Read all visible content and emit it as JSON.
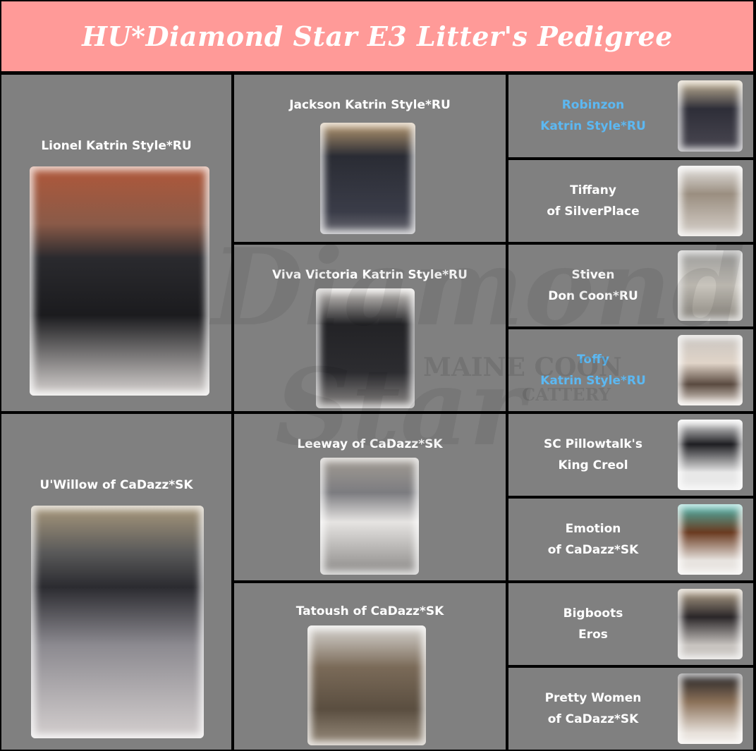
{
  "title": "HU*Diamond Star E3 Litter's Pedigree",
  "watermark": {
    "line1": "Diamond",
    "line2": "Star",
    "line3": "MAINE COON",
    "line4": "CATTERY"
  },
  "colors": {
    "header": "#ff9a98",
    "cell": "#808080",
    "text": "#ffffff",
    "highlight": "#5cb8f2"
  },
  "parents": [
    {
      "name": "Lionel Katrin Style*RU"
    },
    {
      "name": "U'Willow of CaDazz*SK"
    }
  ],
  "grandparents": [
    {
      "name": "Jackson Katrin Style*RU"
    },
    {
      "name": "Viva Victoria Katrin Style*RU"
    },
    {
      "name": "Leeway of CaDazz*SK"
    },
    {
      "name": "Tatoush of CaDazz*SK"
    }
  ],
  "great_grandparents": [
    {
      "line1": "Robinzon",
      "line2": "Katrin Style*RU",
      "highlight": true
    },
    {
      "line1": "Tiffany",
      "line2": "of SilverPlace",
      "highlight": false
    },
    {
      "line1": "Stiven",
      "line2": "Don Coon*RU",
      "highlight": false
    },
    {
      "line1": "Toffy",
      "line2": "Katrin Style*RU",
      "highlight": true
    },
    {
      "line1": "SC Pillowtalk's",
      "line2": "King Creol",
      "highlight": false
    },
    {
      "line1": "Emotion",
      "line2": "of CaDazz*SK",
      "highlight": false
    },
    {
      "line1": "Bigboots",
      "line2": "Eros",
      "highlight": false
    },
    {
      "line1": "Pretty Women",
      "line2": "of CaDazz*SK",
      "highlight": false
    }
  ]
}
